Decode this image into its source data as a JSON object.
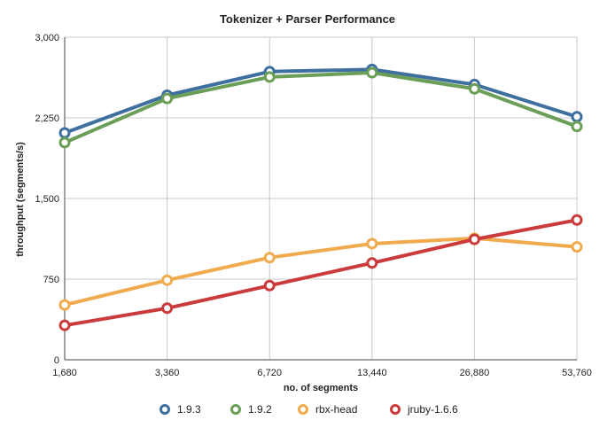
{
  "chart_data": {
    "type": "line",
    "title": "Tokenizer + Parser Performance",
    "xlabel": "no. of segments",
    "ylabel": "throughput (segments/s)",
    "x": [
      1680,
      3360,
      6720,
      13440,
      26880,
      53760
    ],
    "x_tick_labels": [
      "1,680",
      "3,360",
      "6,720",
      "13,440",
      "26,880",
      "53,760"
    ],
    "x_scale": "log2",
    "ylim": [
      0,
      3000
    ],
    "y_ticks": [
      0,
      750,
      1500,
      2250,
      3000
    ],
    "y_tick_labels": [
      "0",
      "750",
      "1,500",
      "2,250",
      "3,000"
    ],
    "grid": true,
    "legend_position": "bottom",
    "series": [
      {
        "name": "1.9.3",
        "color": "#3e6f9f",
        "values": [
          2110,
          2460,
          2680,
          2700,
          2560,
          2260
        ]
      },
      {
        "name": "1.9.2",
        "color": "#6b9e57",
        "values": [
          2020,
          2430,
          2630,
          2670,
          2520,
          2170
        ]
      },
      {
        "name": "rbx-head",
        "color": "#f0ab4f",
        "values": [
          510,
          740,
          950,
          1080,
          1130,
          1050
        ]
      },
      {
        "name": "jruby-1.6.6",
        "color": "#cc3b3b",
        "values": [
          320,
          480,
          690,
          900,
          1120,
          1300
        ]
      }
    ]
  }
}
